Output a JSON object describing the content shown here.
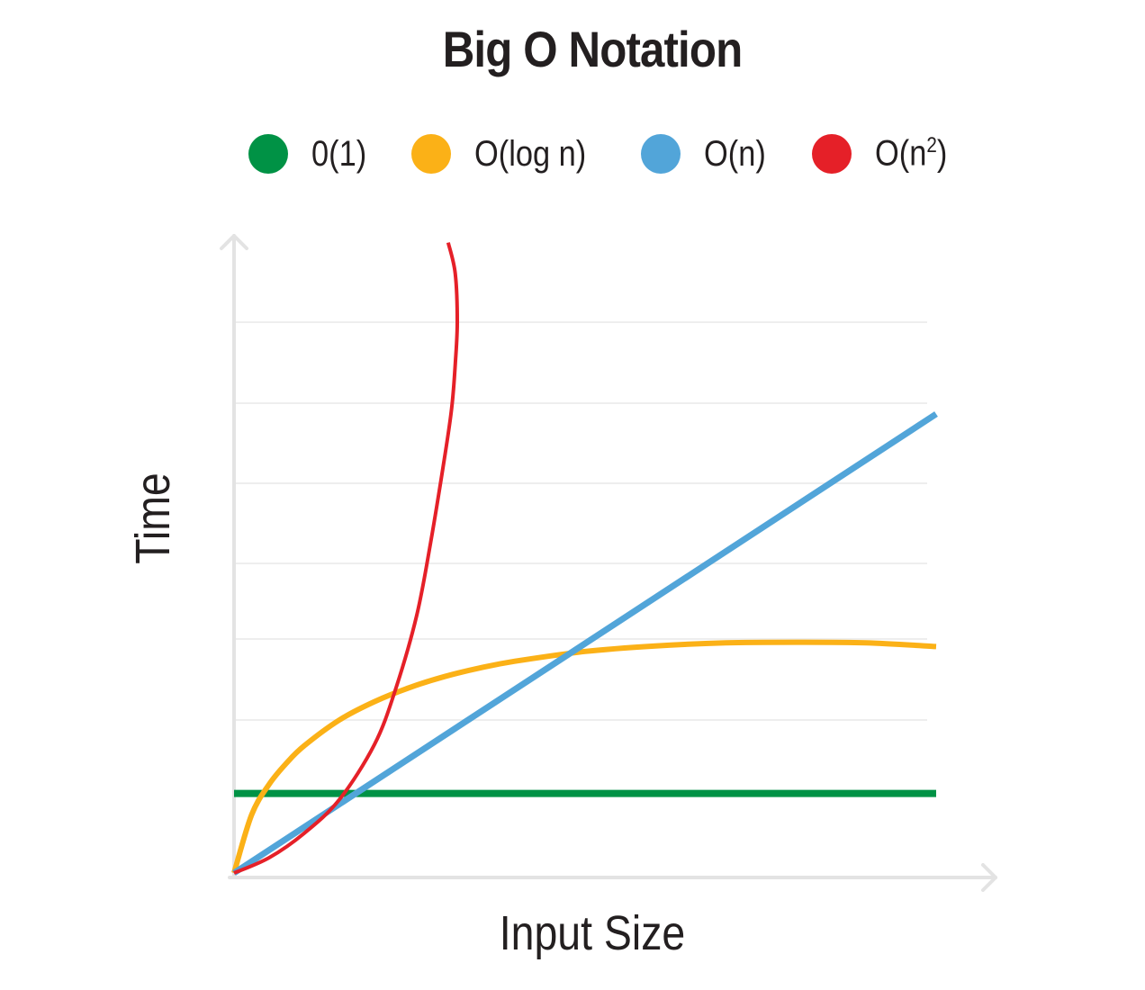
{
  "chart_data": {
    "type": "line",
    "title": "Big O Notation",
    "xlabel": "Input Size",
    "ylabel": "Time",
    "xlim": [
      0,
      10
    ],
    "ylim": [
      0,
      10
    ],
    "grid": true,
    "legend_position": "top",
    "series": [
      {
        "name": "0(1)",
        "color": "#009245",
        "x": [
          0,
          10
        ],
        "y": [
          1.3,
          1.3
        ]
      },
      {
        "name": "O(log n)",
        "color": "#fbb117",
        "x": [
          0,
          0.25,
          0.5,
          0.75,
          1,
          1.5,
          2,
          2.5,
          3,
          3.5,
          4,
          5,
          6,
          7,
          8,
          9,
          10
        ],
        "y": [
          0,
          0.95,
          1.45,
          1.8,
          2.08,
          2.5,
          2.8,
          3.03,
          3.21,
          3.35,
          3.46,
          3.62,
          3.71,
          3.76,
          3.77,
          3.76,
          3.7
        ]
      },
      {
        "name": "O(n)",
        "color": "#52a5d9",
        "x": [
          0,
          10
        ],
        "y": [
          0,
          7.5
        ]
      },
      {
        "name": "O(n",
        "color": "#e52028",
        "x": [
          0,
          0.5,
          1,
          1.5,
          2,
          2.3,
          2.6,
          2.8,
          3,
          3.1,
          3.15,
          3.18,
          3.15,
          3.05
        ],
        "y": [
          0,
          0.25,
          0.65,
          1.2,
          2.1,
          3.0,
          4.2,
          5.4,
          6.8,
          7.6,
          8.3,
          9.0,
          9.8,
          10.3
        ]
      }
    ]
  },
  "legend": {
    "items": [
      {
        "label": "0(1)",
        "color": "#009245"
      },
      {
        "label": "O(log n)",
        "color": "#fbb117"
      },
      {
        "label": "O(n)",
        "color": "#52a5d9"
      },
      {
        "label": "O(n",
        "sup": "2",
        "tail": ")",
        "color": "#e52028"
      }
    ]
  }
}
